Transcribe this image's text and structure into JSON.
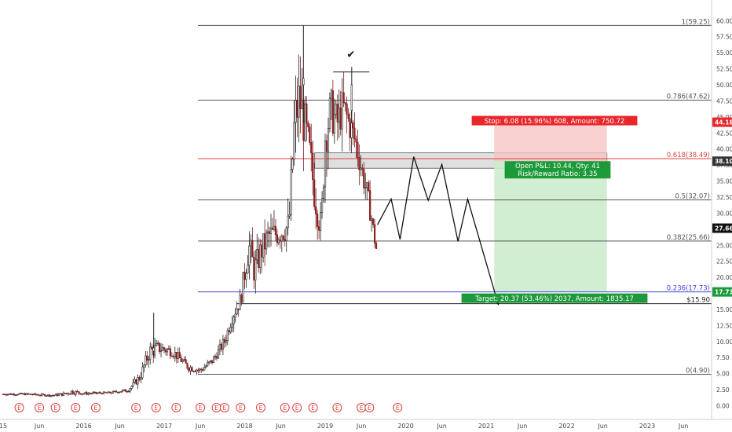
{
  "chart_data": {
    "type": "candlestick",
    "xlim": [
      2015.0,
      2023.93
    ],
    "ylim": [
      -2.3,
      61.0
    ],
    "price_ticks": [
      0,
      2.5,
      5,
      7.5,
      10,
      12.5,
      15,
      17.5,
      20,
      22.5,
      25,
      27.5,
      30,
      32.5,
      35,
      37.5,
      40,
      42.5,
      45,
      47.5,
      50,
      52.5,
      55,
      57.5,
      60
    ],
    "time_ticks": [
      {
        "t": 2015.0,
        "label": "15"
      },
      {
        "t": 2015.45,
        "label": "Jun"
      },
      {
        "t": 2016.0,
        "label": "2016"
      },
      {
        "t": 2016.45,
        "label": "Jun"
      },
      {
        "t": 2017.0,
        "label": "2017"
      },
      {
        "t": 2017.45,
        "label": "Jun"
      },
      {
        "t": 2018.0,
        "label": "2018"
      },
      {
        "t": 2018.45,
        "label": "Jun"
      },
      {
        "t": 2019.0,
        "label": "2019"
      },
      {
        "t": 2019.45,
        "label": "Jun"
      },
      {
        "t": 2020.0,
        "label": "2020"
      },
      {
        "t": 2020.45,
        "label": "Jun"
      },
      {
        "t": 2021.0,
        "label": "2021"
      },
      {
        "t": 2021.45,
        "label": "Jun"
      },
      {
        "t": 2022.0,
        "label": "2022"
      },
      {
        "t": 2022.45,
        "label": "Jun"
      },
      {
        "t": 2023.0,
        "label": "2023"
      },
      {
        "t": 2023.45,
        "label": "Jun"
      }
    ],
    "fib_levels": [
      {
        "ratio": "1",
        "price": 59.25,
        "label": "1(59.25)",
        "color": "#555555"
      },
      {
        "ratio": "0.786",
        "price": 47.62,
        "label": "0.786(47.62)",
        "color": "#555555"
      },
      {
        "ratio": "0.618",
        "price": 38.49,
        "label": "0.618(38.49)",
        "color": "#e0403a"
      },
      {
        "ratio": "0.5",
        "price": 32.07,
        "label": "0.5(32.07)",
        "color": "#555555"
      },
      {
        "ratio": "0.382",
        "price": 25.66,
        "label": "0.382(25.66)",
        "color": "#555555"
      },
      {
        "ratio": "0.236",
        "price": 17.73,
        "label": "0.236(17.73)",
        "color": "#3f3fd8"
      },
      {
        "ratio": "0",
        "price": 4.9,
        "label": "0(4.90)",
        "color": "#555555"
      }
    ],
    "fib_start_t": 2017.42,
    "extra_line": {
      "price": 15.9,
      "label": "$15.90",
      "t_start": 2017.9
    },
    "peak_marker": {
      "label": "✔",
      "t": 2019.32,
      "price": 54.2,
      "line_t0": 2019.1,
      "line_t1": 2019.55,
      "line_price": 52.0
    },
    "position": {
      "t_start": 2021.1,
      "t_end": 2022.5,
      "entry": 38.1,
      "stop": 44.18,
      "target": 17.73,
      "stop_label": "Stop: 6.08 (15.96%) 608, Amount: 750.72",
      "pnl_label": "Open P&L: 10.44, Qty: 41",
      "rr_label": "Risk/Reward Ratio: 3.35",
      "target_label": "Target: 20.37 (53.46%) 2037, Amount: 1835.17"
    },
    "zone": {
      "t0": 2018.87,
      "t1": 2022.5,
      "y0": 37.0,
      "y1": 39.4
    },
    "projection": [
      [
        2019.65,
        28.2
      ],
      [
        2019.82,
        32.2
      ],
      [
        2019.93,
        25.9
      ],
      [
        2020.1,
        38.8
      ],
      [
        2020.28,
        32.0
      ],
      [
        2020.45,
        37.6
      ],
      [
        2020.65,
        25.6
      ],
      [
        2020.77,
        32.2
      ],
      [
        2021.15,
        15.8
      ]
    ],
    "price_labels": [
      {
        "price": 44.18,
        "text": "44.18",
        "bg": "#e8262b"
      },
      {
        "price": 38.1,
        "text": "38.10",
        "bg": "#333333"
      },
      {
        "price": 27.66,
        "text": "27.66",
        "bg": "#111111"
      },
      {
        "price": 17.73,
        "text": "17.73",
        "bg": "#1c9a3a"
      }
    ],
    "earnings_marker_label": "E",
    "earnings_markers": [
      2015.2,
      2015.45,
      2015.65,
      2015.9,
      2016.15,
      2016.65,
      2016.9,
      2017.15,
      2017.45,
      2017.65,
      2017.75,
      2017.95,
      2018.2,
      2018.5,
      2018.65,
      2018.85,
      2019.15,
      2019.45,
      2019.55,
      2019.9
    ],
    "anchors": [
      [
        2015.0,
        1.8,
        0.3
      ],
      [
        2015.3,
        1.8,
        0.3
      ],
      [
        2015.6,
        1.6,
        0.3
      ],
      [
        2015.75,
        1.8,
        0.5
      ],
      [
        2015.85,
        2.2,
        0.8
      ],
      [
        2016.0,
        1.9,
        0.4
      ],
      [
        2016.3,
        2.0,
        0.3
      ],
      [
        2016.55,
        2.4,
        0.5
      ],
      [
        2016.7,
        4.5,
        1.5
      ],
      [
        2016.82,
        8.5,
        2.5
      ],
      [
        2016.92,
        9.0,
        2.0
      ],
      [
        2017.1,
        8.5,
        1.6
      ],
      [
        2017.3,
        6.0,
        1.2
      ],
      [
        2017.45,
        5.5,
        1.0
      ],
      [
        2017.6,
        7.0,
        1.2
      ],
      [
        2017.75,
        10.0,
        1.8
      ],
      [
        2017.85,
        14.0,
        2.2
      ],
      [
        2017.95,
        16.5,
        2.5
      ],
      [
        2018.05,
        25.0,
        5.5
      ],
      [
        2018.12,
        21.0,
        4.5
      ],
      [
        2018.2,
        24.0,
        4.5
      ],
      [
        2018.3,
        26.5,
        4.5
      ],
      [
        2018.45,
        27.0,
        4.0
      ],
      [
        2018.55,
        28.0,
        5.0
      ],
      [
        2018.62,
        44.0,
        9.0
      ],
      [
        2018.68,
        48.0,
        9.0
      ],
      [
        2018.74,
        44.0,
        8.0
      ],
      [
        2018.8,
        40.0,
        6.0
      ],
      [
        2018.87,
        33.0,
        6.0
      ],
      [
        2018.95,
        27.5,
        5.0
      ],
      [
        2019.0,
        42.0,
        7.0
      ],
      [
        2019.07,
        46.0,
        7.0
      ],
      [
        2019.15,
        44.0,
        6.0
      ],
      [
        2019.22,
        46.5,
        6.0
      ],
      [
        2019.3,
        44.0,
        5.5
      ],
      [
        2019.38,
        41.0,
        5.0
      ],
      [
        2019.45,
        37.0,
        4.0
      ],
      [
        2019.52,
        33.0,
        4.0
      ],
      [
        2019.58,
        29.0,
        3.0
      ],
      [
        2019.63,
        24.5,
        2.0
      ]
    ],
    "special_bars": [
      {
        "t": 2016.87,
        "o": 9.0,
        "h": 14.5,
        "l": 7.5,
        "c": 8.5
      },
      {
        "t": 2018.73,
        "o": 50.0,
        "h": 59.25,
        "l": 44.0,
        "c": 51.0
      },
      {
        "t": 2019.33,
        "o": 50.0,
        "h": 52.8,
        "l": 44.0,
        "c": 46.0
      }
    ]
  }
}
